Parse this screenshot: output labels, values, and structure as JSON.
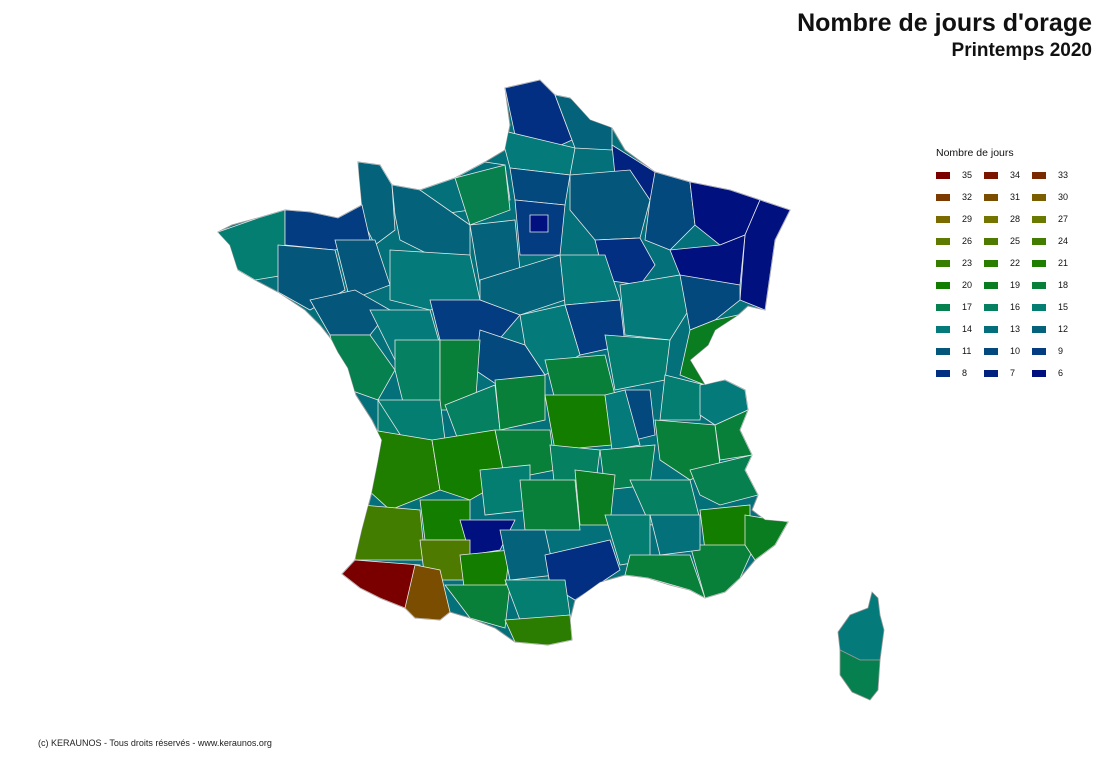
{
  "title": "Nombre de jours d'orage",
  "subtitle": "Printemps 2020",
  "legend": {
    "title": "Nombre de jours",
    "items": [
      {
        "value": "35",
        "color": "#7a0000"
      },
      {
        "value": "34",
        "color": "#7a1500"
      },
      {
        "value": "33",
        "color": "#7a2a00"
      },
      {
        "value": "32",
        "color": "#7a3a00"
      },
      {
        "value": "31",
        "color": "#7a4d00"
      },
      {
        "value": "30",
        "color": "#7a5e00"
      },
      {
        "value": "29",
        "color": "#7a6a00"
      },
      {
        "value": "28",
        "color": "#747400"
      },
      {
        "value": "27",
        "color": "#6a7a00"
      },
      {
        "value": "26",
        "color": "#5e7a00"
      },
      {
        "value": "25",
        "color": "#4f7a00"
      },
      {
        "value": "24",
        "color": "#437d00"
      },
      {
        "value": "23",
        "color": "#367d00"
      },
      {
        "value": "22",
        "color": "#2a7d00"
      },
      {
        "value": "21",
        "color": "#1f7d00"
      },
      {
        "value": "20",
        "color": "#137d00"
      },
      {
        "value": "19",
        "color": "#0a7d20"
      },
      {
        "value": "18",
        "color": "#08803a"
      },
      {
        "value": "17",
        "color": "#06804e"
      },
      {
        "value": "16",
        "color": "#058060"
      },
      {
        "value": "15",
        "color": "#047e70"
      },
      {
        "value": "14",
        "color": "#047a7a"
      },
      {
        "value": "13",
        "color": "#046f7a"
      },
      {
        "value": "12",
        "color": "#04637a"
      },
      {
        "value": "11",
        "color": "#04567a"
      },
      {
        "value": "10",
        "color": "#03497d"
      },
      {
        "value": "9",
        "color": "#033c80"
      },
      {
        "value": "8",
        "color": "#022f82"
      },
      {
        "value": "7",
        "color": "#01227f"
      },
      {
        "value": "6",
        "color": "#00107f"
      }
    ]
  },
  "copyright": "(c) KERAUNOS - Tous droits réservés - www.keraunos.org"
}
